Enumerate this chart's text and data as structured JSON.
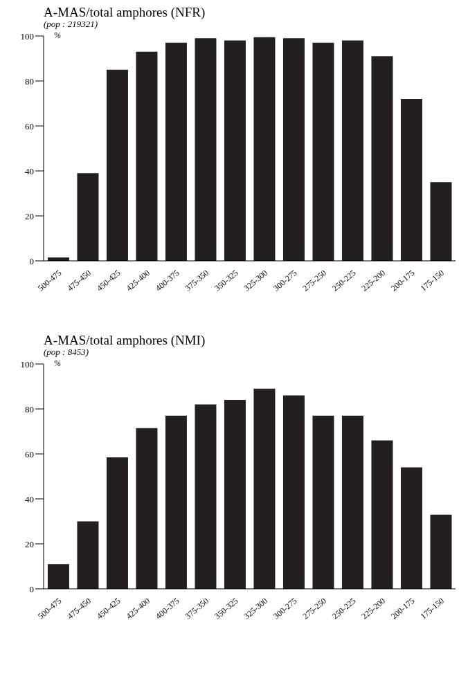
{
  "chart_data": [
    {
      "type": "bar",
      "title": "A-MAS/total amphores (NFR)",
      "subtitle": "(pop : 219321)",
      "ylabel": "%",
      "categories": [
        "500-475",
        "475-450",
        "450-425",
        "425-400",
        "400-375",
        "375-350",
        "350-325",
        "325-300",
        "300-275",
        "275-250",
        "250-225",
        "225-200",
        "200-175",
        "175-150"
      ],
      "values": [
        1.5,
        39,
        85,
        93,
        97,
        99,
        98,
        99.5,
        99,
        97,
        98,
        91,
        72,
        35
      ],
      "color": "#231f20",
      "ylim": [
        0,
        100
      ],
      "yticks": [
        0,
        20,
        40,
        60,
        80,
        100
      ],
      "grid": false,
      "legend": false
    },
    {
      "type": "bar",
      "title": "A-MAS/total amphores (NMI)",
      "subtitle": "(pop : 8453)",
      "ylabel": "%",
      "categories": [
        "500-475",
        "475-450",
        "450-425",
        "425-400",
        "400-375",
        "375-350",
        "350-325",
        "325-300",
        "300-275",
        "275-250",
        "250-225",
        "225-200",
        "200-175",
        "175-150"
      ],
      "values": [
        11,
        30,
        58.5,
        71.5,
        77,
        82,
        84,
        89,
        86,
        77,
        77,
        66,
        54,
        33
      ],
      "color": "#231f20",
      "ylim": [
        0,
        100
      ],
      "yticks": [
        0,
        20,
        40,
        60,
        80,
        100
      ],
      "grid": false,
      "legend": false
    }
  ]
}
